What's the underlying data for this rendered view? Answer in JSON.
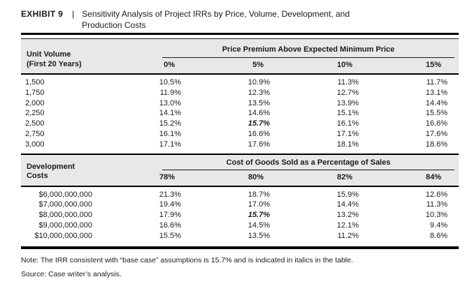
{
  "exhibit": {
    "label": "EXHIBIT 9",
    "separator": "|",
    "title_line1": "Sensitivity Analysis of Project IRRs by Price, Volume, Development, and",
    "title_line2": "Production Costs"
  },
  "table1": {
    "corner_label_line1": "Unit Volume",
    "corner_label_line2": "(First 20 Years)",
    "spanner": "Price Premium Above Expected Minimum Price",
    "columns": [
      "0%",
      "5%",
      "10%",
      "15%"
    ],
    "rows": [
      {
        "label": "1,500",
        "values": [
          "10.5%",
          "10.9%",
          "11.3%",
          "11.7%"
        ]
      },
      {
        "label": "1,750",
        "values": [
          "11.9%",
          "12.3%",
          "12.7%",
          "13.1%"
        ]
      },
      {
        "label": "2,000",
        "values": [
          "13.0%",
          "13.5%",
          "13.9%",
          "14.4%"
        ]
      },
      {
        "label": "2,250",
        "values": [
          "14.1%",
          "14.6%",
          "15.1%",
          "15.5%"
        ]
      },
      {
        "label": "2,500",
        "values": [
          "15.2%",
          "15.7%",
          "16.1%",
          "16.6%"
        ]
      },
      {
        "label": "2,750",
        "values": [
          "16.1%",
          "16.6%",
          "17.1%",
          "17.6%"
        ]
      },
      {
        "label": "3,000",
        "values": [
          "17.1%",
          "17.6%",
          "18.1%",
          "18.6%"
        ]
      }
    ],
    "base_case_cell": {
      "row": 4,
      "col": 1
    }
  },
  "table2": {
    "corner_label_line1": "Development",
    "corner_label_line2": "Costs",
    "spanner": "Cost of Goods Sold as a Percentage of Sales",
    "columns": [
      "78%",
      "80%",
      "82%",
      "84%"
    ],
    "rows": [
      {
        "label": "$6,000,000,000",
        "values": [
          "21.3%",
          "18.7%",
          "15.9%",
          "12.6%"
        ]
      },
      {
        "label": "$7,000,000,000",
        "values": [
          "19.4%",
          "17.0%",
          "14.4%",
          "11.3%"
        ]
      },
      {
        "label": "$8,000,000,000",
        "values": [
          "17.9%",
          "15.7%",
          "13.2%",
          "10.3%"
        ]
      },
      {
        "label": "$9,000,000,000",
        "values": [
          "16.6%",
          "14.5%",
          "12.1%",
          "9.4%"
        ]
      },
      {
        "label": "$10,000,000,000",
        "values": [
          "15.5%",
          "13.5%",
          "11.2%",
          "8.6%"
        ]
      }
    ],
    "base_case_cell": {
      "row": 2,
      "col": 1
    }
  },
  "notes": {
    "note": "Note: The IRR consistent with “base case” assumptions is 15.7% and is indicated in italics in the table.",
    "source": "Source: Case writer’s analysis."
  },
  "base_case_value": "15.7%",
  "colors": {
    "header_band": "#e8e8e8",
    "rule": "#000000",
    "text": "#1a1a1a",
    "background": "#ffffff"
  }
}
